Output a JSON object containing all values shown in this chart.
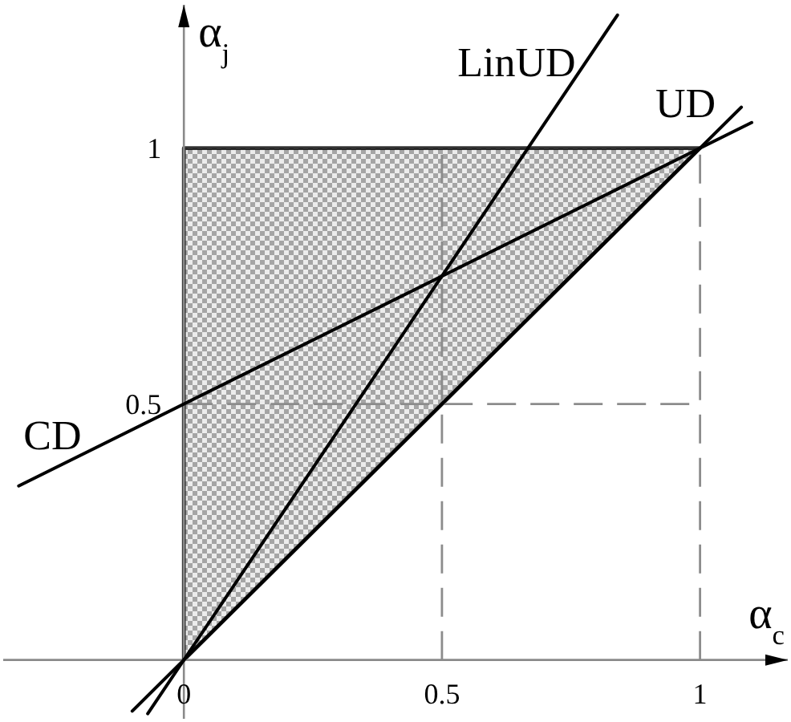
{
  "chart_data": {
    "type": "line",
    "xlabel": "α$_{c}$",
    "ylabel": "α$_{j}$",
    "xlim": [
      -0.35,
      1.17
    ],
    "ylim": [
      -0.115,
      1.28
    ],
    "xticks": [
      0,
      0.5,
      1
    ],
    "yticks": [
      0.5,
      1
    ],
    "series": [
      {
        "name": "LinUD",
        "color": "#000000",
        "x": [
          -0.07,
          0.84
        ],
        "values": [
          -0.105,
          1.26
        ]
      },
      {
        "name": "UD",
        "color": "#000000",
        "x": [
          -0.1,
          0,
          1,
          1.08
        ],
        "values": [
          -0.1,
          0,
          1,
          1.08
        ],
        "lower": [
          null,
          0,
          1,
          null
        ],
        "upper": [
          null,
          1,
          1,
          null
        ]
      },
      {
        "name": "CD",
        "color": "#000000",
        "x": [
          -0.32,
          1.1
        ],
        "values": [
          0.34,
          1.05
        ]
      }
    ],
    "ref_lines": [
      {
        "axis": "x",
        "value": 0.5,
        "color": "#8c8c8c",
        "line_style": "dashed"
      },
      {
        "axis": "x",
        "value": 1,
        "color": "#8c8c8c",
        "line_style": "dashed"
      },
      {
        "axis": "y",
        "value": 0.5,
        "color": "#8c8c8c",
        "line_style": "dashed"
      }
    ]
  }
}
